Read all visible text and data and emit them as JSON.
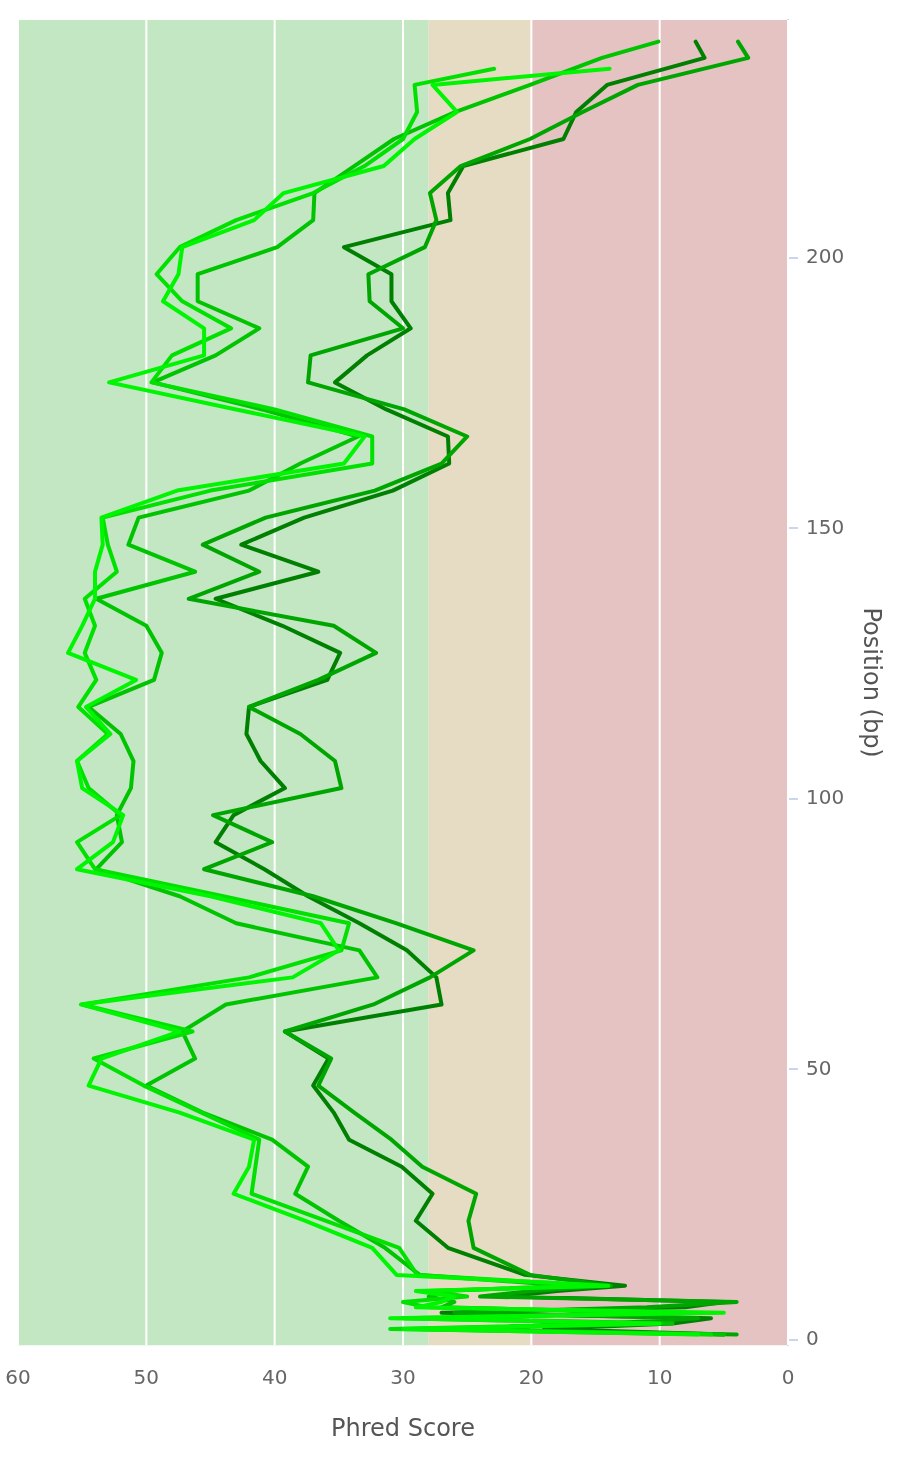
{
  "chart_data": {
    "type": "line",
    "xlabel": "Phred Score",
    "ylabel": "Position (bp)",
    "xlim": [
      60,
      0
    ],
    "xticks": [
      0,
      10,
      20,
      30,
      40,
      50,
      60
    ],
    "ylim": [
      -1,
      244
    ],
    "yticks": [
      0,
      50,
      100,
      150,
      200
    ],
    "grid": "x",
    "legend": false,
    "marker": "none",
    "bands": [
      {
        "axis": "x",
        "from": 28,
        "to": 60,
        "color": "#c3e6c3"
      },
      {
        "axis": "x",
        "from": 20,
        "to": 28,
        "color": "#e6dcc3"
      },
      {
        "axis": "x",
        "from": 0,
        "to": 20,
        "color": "#e6c3c3"
      }
    ],
    "series": [
      {
        "color": "#00f500",
        "values": [
          1,
          2,
          3,
          4,
          5,
          6,
          7,
          8,
          9,
          10,
          12,
          17,
          22,
          27,
          32,
          37,
          42,
          47,
          52,
          57,
          62,
          67,
          72,
          77,
          82,
          87,
          92,
          97,
          102,
          107,
          112,
          117,
          122,
          127,
          132,
          137,
          142,
          147,
          152,
          157,
          162,
          167,
          172,
          177,
          182,
          187,
          192,
          197,
          202,
          207,
          212,
          217,
          222,
          227,
          232,
          235
        ],
        "x": [
          7,
          30,
          10,
          31,
          5,
          29,
          27,
          26,
          29,
          14,
          30.5,
          32.4,
          37.6,
          43.2,
          42,
          41.6,
          47.4,
          54.5,
          53.5,
          47.4,
          55.1,
          38.6,
          35,
          36.4,
          45,
          55.4,
          52.6,
          51.8,
          55,
          55.4,
          52.8,
          54.7,
          50.8,
          56.1,
          55,
          54,
          54,
          53.4,
          53.5,
          47.6,
          34.6,
          33,
          43,
          52.9,
          45.5,
          45.5,
          48.7,
          47.5,
          47.2,
          41.6,
          39.3,
          31.5,
          29.1,
          25.8,
          27.7,
          13.9
        ]
      },
      {
        "color": "#00e100",
        "values": [
          1,
          2,
          3,
          4,
          5,
          6,
          7,
          8,
          9,
          10,
          12,
          17,
          22,
          27,
          32,
          37,
          42,
          47,
          52,
          57,
          62,
          67,
          72,
          77,
          82,
          87,
          92,
          97,
          102,
          107,
          112,
          117,
          122,
          127,
          132,
          137,
          142,
          147,
          152,
          157,
          162,
          167,
          172,
          177,
          182,
          187,
          192,
          197,
          202,
          207,
          212,
          217,
          222,
          227,
          232,
          235
        ],
        "x": [
          6,
          31,
          12,
          30,
          8,
          28,
          30,
          25,
          28,
          15,
          28.9,
          30.3,
          36,
          41.8,
          41.5,
          41.2,
          45.7,
          50.2,
          54.1,
          46.4,
          55,
          42,
          34.8,
          34.2,
          44,
          54,
          55.4,
          52,
          54.5,
          55.4,
          53,
          55.3,
          53.9,
          54.8,
          54,
          54.8,
          52.3,
          53,
          53.4,
          45,
          32.4,
          32.4,
          40,
          49.6,
          48,
          43.4,
          47.2,
          49.2,
          47.4,
          43,
          37,
          33,
          30,
          28.9,
          29.1,
          22.9
        ]
      },
      {
        "color": "#00c400",
        "values": [
          1,
          2,
          3,
          4,
          5,
          6,
          7,
          8,
          9,
          10,
          12,
          17,
          22,
          27,
          32,
          37,
          42,
          47,
          52,
          57,
          62,
          67,
          72,
          77,
          82,
          87,
          92,
          97,
          102,
          107,
          112,
          117,
          122,
          127,
          132,
          137,
          142,
          147,
          152,
          157,
          162,
          167,
          172,
          177,
          182,
          187,
          192,
          197,
          202,
          207,
          212,
          217,
          222,
          227,
          232,
          237,
          240
        ],
        "x": [
          5,
          29,
          9,
          28,
          10,
          27,
          26,
          28,
          27,
          17,
          28.7,
          31.4,
          35,
          38.4,
          37.4,
          40.2,
          45.6,
          50,
          46.2,
          47.2,
          43.8,
          32,
          33.4,
          43,
          47.4,
          53.9,
          51.9,
          52.3,
          51.2,
          51,
          52,
          54.5,
          49.4,
          48.8,
          50,
          53.9,
          46.2,
          51.4,
          50.6,
          42,
          38,
          33.5,
          41,
          49.5,
          44.6,
          41.2,
          46,
          46,
          39.8,
          37,
          36.9,
          33.8,
          30.7,
          25.9,
          20.1,
          14.5,
          10.1
        ]
      },
      {
        "color": "#00a600",
        "values": [
          1,
          2,
          3,
          4,
          5,
          6,
          7,
          8,
          9,
          10,
          12,
          17,
          22,
          27,
          32,
          37,
          42,
          47,
          52,
          57,
          62,
          67,
          72,
          77,
          82,
          87,
          92,
          97,
          102,
          107,
          112,
          117,
          122,
          127,
          132,
          137,
          142,
          147,
          152,
          157,
          162,
          167,
          172,
          177,
          182,
          187,
          192,
          197,
          202,
          207,
          212,
          217,
          222,
          227,
          232,
          237,
          240
        ],
        "x": [
          4,
          27,
          14,
          7,
          26,
          11,
          4,
          24,
          20,
          13.8,
          20.1,
          24.5,
          24.9,
          24.3,
          28.5,
          30.9,
          33.8,
          36.6,
          35.6,
          39.2,
          32.3,
          27.9,
          24.5,
          30.5,
          37,
          45.5,
          40.2,
          44.8,
          34.8,
          35.3,
          38,
          42,
          36.6,
          32.1,
          35.4,
          46.7,
          41.2,
          45.6,
          40.7,
          32.2,
          27,
          25,
          29.9,
          37.4,
          37.2,
          30,
          32.6,
          32.7,
          28.3,
          27.4,
          27.9,
          25.5,
          20.1,
          16,
          11.7,
          3.1,
          3.9
        ]
      },
      {
        "color": "#008000",
        "values": [
          1,
          2,
          3,
          4,
          5,
          6,
          7,
          8,
          9,
          10,
          12,
          17,
          22,
          27,
          32,
          37,
          42,
          47,
          52,
          57,
          62,
          67,
          72,
          77,
          82,
          87,
          92,
          97,
          102,
          107,
          112,
          117,
          122,
          127,
          132,
          137,
          142,
          147,
          152,
          157,
          162,
          167,
          172,
          177,
          182,
          187,
          192,
          197,
          202,
          207,
          212,
          217,
          222,
          227,
          232,
          237,
          240
        ],
        "x": [
          5,
          19,
          9,
          6,
          27,
          8,
          5,
          22,
          18,
          12.7,
          20.5,
          26.5,
          29,
          27.7,
          30.1,
          34.2,
          35.4,
          37,
          35.8,
          39.2,
          27,
          27.4,
          29.7,
          33.4,
          37.4,
          40.8,
          44.6,
          43.2,
          39.2,
          41.1,
          42.2,
          42,
          35.9,
          34.9,
          39.4,
          44.6,
          36.6,
          42.6,
          37.7,
          30.8,
          26.4,
          26.5,
          31.3,
          35.3,
          32.8,
          29.4,
          30.9,
          30.9,
          34.6,
          26.3,
          26.5,
          25.3,
          17.5,
          16.5,
          14.1,
          6.5,
          7.2
        ]
      }
    ]
  }
}
